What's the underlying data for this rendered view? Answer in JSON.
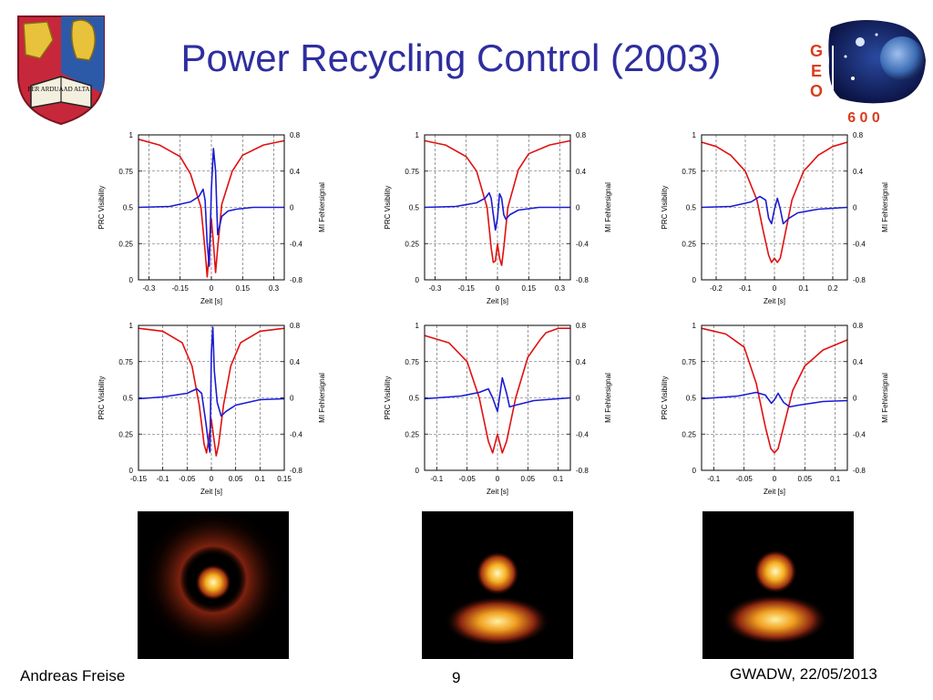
{
  "slide": {
    "title": "Power Recycling Control (2003)",
    "footer_author": "Andreas Freise",
    "footer_page": "9",
    "footer_event": "GWADW,  22/05/2013"
  },
  "logos": {
    "crest_left_text": "PER ARDUA",
    "crest_right_text": "AD ALTA",
    "geo_letters": [
      "G",
      "E",
      "O"
    ],
    "geo_digits": "6 0 0",
    "geo_colors": {
      "letters": "#d93d1e",
      "space": "#0d1a5a",
      "planet": "#5a87c8"
    }
  },
  "chart_data": [
    {
      "type": "line",
      "xlabel": "Zeit [s]",
      "ylabel": "PRC Visibility",
      "y2label": "MI Fehlersignal",
      "xlim": [
        -0.35,
        0.35
      ],
      "xticks": [
        "-0.3",
        "-0.15",
        "0",
        "0.15",
        "0.3"
      ],
      "xtick_values": [
        -0.3,
        -0.15,
        0,
        0.15,
        0.3
      ],
      "ylim": [
        0,
        1
      ],
      "yticks": [
        "0",
        "0.25",
        "0.5",
        "0.75",
        "1"
      ],
      "y2lim": [
        -0.8,
        0.8
      ],
      "y2ticks": [
        "-0.8",
        "-0.4",
        "0",
        "0.4",
        "0.8"
      ],
      "grid": true,
      "colors": [
        "#e01010",
        "#1a1ad4"
      ],
      "series": [
        {
          "x": [
            -0.35,
            -0.25,
            -0.15,
            -0.1,
            -0.05,
            -0.03,
            -0.02,
            -0.01,
            0,
            0.01,
            0.02,
            0.03,
            0.05,
            0.1,
            0.15,
            0.25,
            0.35
          ],
          "y": [
            0.97,
            0.93,
            0.85,
            0.73,
            0.5,
            0.2,
            0.02,
            0.2,
            0.42,
            0.25,
            0.05,
            0.22,
            0.52,
            0.75,
            0.86,
            0.93,
            0.96
          ]
        },
        {
          "x": [
            -0.35,
            -0.2,
            -0.1,
            -0.06,
            -0.04,
            -0.03,
            -0.02,
            -0.01,
            0,
            0.01,
            0.02,
            0.03,
            0.05,
            0.08,
            0.12,
            0.2,
            0.35
          ],
          "y": [
            0,
            0.01,
            0.06,
            0.12,
            0.2,
            0.08,
            -0.4,
            -0.65,
            0.2,
            0.65,
            0.4,
            -0.3,
            -0.1,
            -0.04,
            -0.02,
            0,
            0
          ]
        }
      ]
    },
    {
      "type": "line",
      "xlabel": "Zeit [s]",
      "ylabel": "PRC Visibility",
      "y2label": "MI Fehlersignal",
      "xlim": [
        -0.35,
        0.35
      ],
      "xticks": [
        "-0.3",
        "-0.15",
        "0",
        "0.15",
        "0.3"
      ],
      "xtick_values": [
        -0.3,
        -0.15,
        0,
        0.15,
        0.3
      ],
      "ylim": [
        0,
        1
      ],
      "yticks": [
        "0",
        "0.25",
        "0.5",
        "0.75",
        "1"
      ],
      "y2lim": [
        -0.8,
        0.8
      ],
      "y2ticks": [
        "-0.8",
        "-0.4",
        "0",
        "0.4",
        "0.8"
      ],
      "grid": true,
      "colors": [
        "#e01010",
        "#1a1ad4"
      ],
      "series": [
        {
          "x": [
            -0.35,
            -0.25,
            -0.15,
            -0.1,
            -0.05,
            -0.03,
            -0.02,
            -0.01,
            0,
            0.01,
            0.02,
            0.03,
            0.05,
            0.1,
            0.15,
            0.25,
            0.35
          ],
          "y": [
            0.96,
            0.93,
            0.85,
            0.75,
            0.5,
            0.22,
            0.12,
            0.13,
            0.25,
            0.15,
            0.1,
            0.22,
            0.5,
            0.76,
            0.87,
            0.93,
            0.96
          ]
        },
        {
          "x": [
            -0.35,
            -0.2,
            -0.1,
            -0.06,
            -0.04,
            -0.03,
            -0.02,
            -0.01,
            0,
            0.01,
            0.02,
            0.03,
            0.04,
            0.06,
            0.1,
            0.2,
            0.35
          ],
          "y": [
            0,
            0.01,
            0.05,
            0.1,
            0.16,
            0.1,
            -0.08,
            -0.25,
            -0.12,
            0.15,
            0.1,
            -0.08,
            -0.13,
            -0.08,
            -0.03,
            0,
            0
          ]
        }
      ]
    },
    {
      "type": "line",
      "xlabel": "Zeit [s]",
      "ylabel": "PRC Visibility",
      "y2label": "MI Fehlersignal",
      "xlim": [
        -0.25,
        0.25
      ],
      "xticks": [
        "-0.2",
        "-0.1",
        "0",
        "0.1",
        "0.2"
      ],
      "xtick_values": [
        -0.2,
        -0.1,
        0,
        0.1,
        0.2
      ],
      "ylim": [
        0,
        1
      ],
      "yticks": [
        "0",
        "0.25",
        "0.5",
        "0.75",
        "1"
      ],
      "y2lim": [
        -0.8,
        0.8
      ],
      "y2ticks": [
        "-0.8",
        "-0.4",
        "0",
        "0.4",
        "0.8"
      ],
      "grid": true,
      "colors": [
        "#e01010",
        "#1a1ad4"
      ],
      "series": [
        {
          "x": [
            -0.25,
            -0.2,
            -0.15,
            -0.1,
            -0.06,
            -0.04,
            -0.02,
            -0.01,
            0,
            0.01,
            0.02,
            0.04,
            0.06,
            0.1,
            0.15,
            0.2,
            0.25
          ],
          "y": [
            0.95,
            0.92,
            0.86,
            0.75,
            0.55,
            0.35,
            0.17,
            0.12,
            0.15,
            0.12,
            0.15,
            0.35,
            0.55,
            0.75,
            0.86,
            0.92,
            0.95
          ]
        },
        {
          "x": [
            -0.25,
            -0.15,
            -0.08,
            -0.05,
            -0.03,
            -0.02,
            -0.01,
            0,
            0.01,
            0.02,
            0.03,
            0.05,
            0.08,
            0.15,
            0.25
          ],
          "y": [
            0,
            0.01,
            0.06,
            0.12,
            0.08,
            -0.12,
            -0.18,
            -0.02,
            0.1,
            -0.02,
            -0.18,
            -0.12,
            -0.06,
            -0.02,
            0
          ]
        }
      ]
    },
    {
      "type": "line",
      "xlabel": "Zeit [s]",
      "ylabel": "PRC Visibility",
      "y2label": "MI Fehlersignal",
      "xlim": [
        -0.15,
        0.15
      ],
      "xticks": [
        "-0.15",
        "-0.1",
        "-0.05",
        "0",
        "0.05",
        "0.1",
        "0.15"
      ],
      "xtick_values": [
        -0.15,
        -0.1,
        -0.05,
        0,
        0.05,
        0.1,
        0.15
      ],
      "ylim": [
        0,
        1
      ],
      "yticks": [
        "0",
        "0.25",
        "0.5",
        "0.75",
        "1"
      ],
      "y2lim": [
        -0.8,
        0.8
      ],
      "y2ticks": [
        "-0.8",
        "-0.4",
        "0",
        "0.4",
        "0.8"
      ],
      "grid": true,
      "colors": [
        "#e01010",
        "#1a1ad4"
      ],
      "series": [
        {
          "x": [
            -0.15,
            -0.1,
            -0.06,
            -0.04,
            -0.025,
            -0.015,
            -0.01,
            -0.005,
            0,
            0.005,
            0.01,
            0.015,
            0.025,
            0.04,
            0.06,
            0.1,
            0.15
          ],
          "y": [
            0.98,
            0.96,
            0.88,
            0.72,
            0.45,
            0.18,
            0.12,
            0.22,
            0.35,
            0.22,
            0.1,
            0.18,
            0.45,
            0.72,
            0.88,
            0.96,
            0.98
          ]
        },
        {
          "x": [
            -0.15,
            -0.1,
            -0.05,
            -0.03,
            -0.02,
            -0.012,
            -0.006,
            -0.003,
            0,
            0.003,
            0.006,
            0.012,
            0.02,
            0.03,
            0.05,
            0.1,
            0.15
          ],
          "y": [
            -0.01,
            0.01,
            0.05,
            0.1,
            0.05,
            -0.25,
            -0.5,
            -0.6,
            0.5,
            0.78,
            0.3,
            -0.05,
            -0.2,
            -0.15,
            -0.08,
            -0.02,
            -0.01
          ]
        }
      ]
    },
    {
      "type": "line",
      "xlabel": "Zeit [s]",
      "ylabel": "PRC Visibility",
      "y2label": "MI Fehlersignal",
      "xlim": [
        -0.12,
        0.12
      ],
      "xticks": [
        "-0.1",
        "-0.05",
        "0",
        "0.05",
        "0.1"
      ],
      "xtick_values": [
        -0.1,
        -0.05,
        0,
        0.05,
        0.1
      ],
      "ylim": [
        0,
        1
      ],
      "yticks": [
        "0",
        "0.25",
        "0.5",
        "0.75",
        "1"
      ],
      "y2lim": [
        -0.8,
        0.8
      ],
      "y2ticks": [
        "-0.8",
        "-0.4",
        "0",
        "0.4",
        "0.8"
      ],
      "grid": true,
      "colors": [
        "#e01010",
        "#1a1ad4"
      ],
      "series": [
        {
          "x": [
            -0.12,
            -0.08,
            -0.05,
            -0.03,
            -0.015,
            -0.008,
            0,
            0.008,
            0.015,
            0.03,
            0.05,
            0.07,
            0.08,
            0.1,
            0.12
          ],
          "y": [
            0.93,
            0.88,
            0.75,
            0.5,
            0.2,
            0.12,
            0.25,
            0.12,
            0.2,
            0.5,
            0.78,
            0.9,
            0.95,
            0.98,
            0.98
          ]
        },
        {
          "x": [
            -0.12,
            -0.06,
            -0.03,
            -0.015,
            -0.008,
            0,
            0.008,
            0.015,
            0.02,
            0.03,
            0.06,
            0.1,
            0.12
          ],
          "y": [
            -0.01,
            0.02,
            0.06,
            0.1,
            0,
            -0.15,
            0.22,
            0.05,
            -0.1,
            -0.08,
            -0.03,
            -0.01,
            0
          ]
        }
      ]
    },
    {
      "type": "line",
      "xlabel": "Zeit [s]",
      "ylabel": "PRC Visibility",
      "y2label": "MI Fehlersignal",
      "xlim": [
        -0.12,
        0.12
      ],
      "xticks": [
        "-0.1",
        "-0.05",
        "0",
        "0.05",
        "0.1"
      ],
      "xtick_values": [
        -0.1,
        -0.05,
        0,
        0.05,
        0.1
      ],
      "ylim": [
        0,
        1
      ],
      "yticks": [
        "0",
        "0.25",
        "0.5",
        "0.75",
        "1"
      ],
      "y2lim": [
        -0.8,
        0.8
      ],
      "y2ticks": [
        "-0.8",
        "-0.4",
        "0",
        "0.4",
        "0.8"
      ],
      "grid": true,
      "colors": [
        "#e01010",
        "#1a1ad4"
      ],
      "series": [
        {
          "x": [
            -0.12,
            -0.08,
            -0.05,
            -0.03,
            -0.015,
            -0.006,
            0,
            0.006,
            0.015,
            0.03,
            0.05,
            0.08,
            0.12
          ],
          "y": [
            0.98,
            0.94,
            0.85,
            0.6,
            0.3,
            0.15,
            0.12,
            0.15,
            0.3,
            0.55,
            0.72,
            0.83,
            0.9
          ]
        },
        {
          "x": [
            -0.12,
            -0.06,
            -0.03,
            -0.015,
            -0.005,
            0,
            0.006,
            0.015,
            0.025,
            0.04,
            0.08,
            0.12
          ],
          "y": [
            -0.01,
            0.02,
            0.06,
            0.03,
            -0.06,
            -0.02,
            0.05,
            -0.05,
            -0.1,
            -0.08,
            -0.04,
            -0.03
          ]
        }
      ]
    }
  ]
}
